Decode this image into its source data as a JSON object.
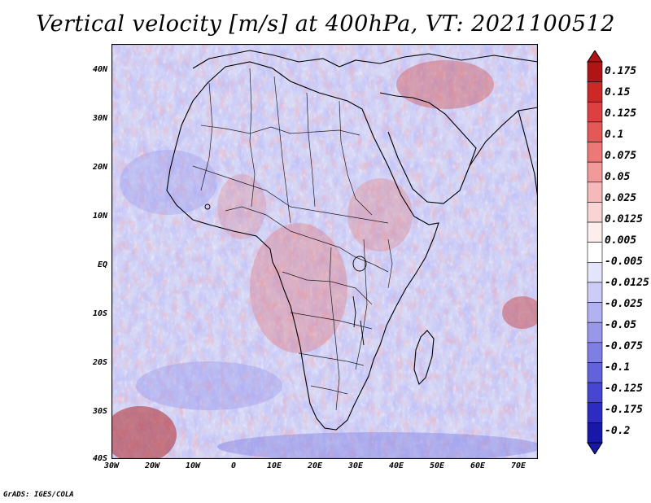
{
  "title": "Vertical velocity [m/s] at 400hPa, VT: 2021100512",
  "footer": "GrADS: IGES/COLA",
  "lat_ticks": [
    "40N",
    "30N",
    "20N",
    "10N",
    "EQ",
    "10S",
    "20S",
    "30S",
    "40S"
  ],
  "lon_ticks": [
    "30W",
    "20W",
    "10W",
    "0",
    "10E",
    "20E",
    "30E",
    "40E",
    "50E",
    "60E",
    "70E"
  ],
  "colorbar": {
    "levels": [
      "0.175",
      "0.15",
      "0.125",
      "0.1",
      "0.075",
      "0.05",
      "0.025",
      "0.0125",
      "0.005",
      "-0.005",
      "-0.0125",
      "-0.025",
      "-0.05",
      "-0.075",
      "-0.1",
      "-0.125",
      "-0.175",
      "-0.2"
    ],
    "colors": [
      "#b01515",
      "#cc2828",
      "#dc4040",
      "#e45858",
      "#ec7878",
      "#f29a9a",
      "#f6b8b8",
      "#fad4d4",
      "#fdeeee",
      "#ffffff",
      "#e4e4fa",
      "#ccccf6",
      "#b2b2f0",
      "#9898ea",
      "#7e7ee4",
      "#6262dc",
      "#4646d0",
      "#2c2cc0",
      "#1818a8"
    ]
  }
}
